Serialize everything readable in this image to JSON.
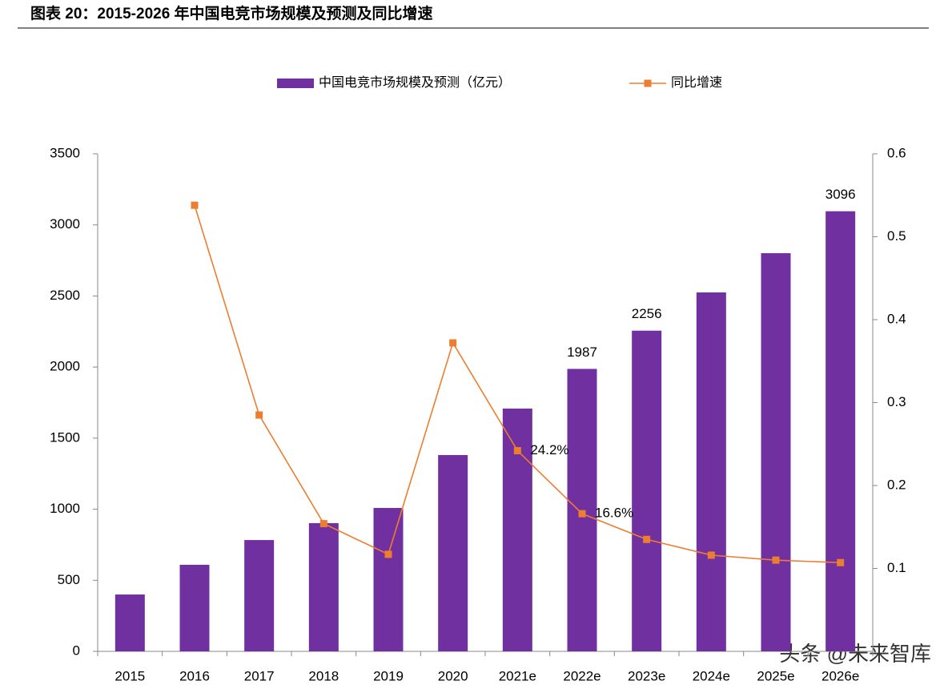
{
  "chart_data": {
    "type": "bar-line",
    "title": "图表 20：2015-2026 年中国电竞市场规模及预测及同比增速",
    "watermark": "头条 @未来智库",
    "categories": [
      "2015",
      "2016",
      "2017",
      "2018",
      "2019",
      "2020",
      "2021e",
      "2022e",
      "2023e",
      "2024e",
      "2025e",
      "2026e"
    ],
    "series": [
      {
        "name": "中国电竞市场规模及预测（亿元）",
        "type": "bar",
        "color": "#7030a0",
        "values": [
          400,
          609,
          783,
          902,
          1009,
          1381,
          1708,
          1987,
          2256,
          2525,
          2801,
          3096
        ],
        "value_labels": [
          null,
          null,
          null,
          null,
          null,
          null,
          null,
          "1987",
          "2256",
          null,
          null,
          "3096"
        ]
      },
      {
        "name": "同比增速",
        "type": "line",
        "axis": "y2",
        "color": "#ed7d31",
        "values": [
          null,
          0.538,
          0.285,
          0.154,
          0.117,
          0.372,
          0.242,
          0.166,
          0.135,
          0.116,
          0.11,
          0.107
        ],
        "value_labels": [
          null,
          null,
          null,
          null,
          null,
          null,
          "24.2%",
          "16.6%",
          null,
          null,
          null,
          null
        ]
      }
    ],
    "ylim": [
      0,
      3500
    ],
    "yticks": [
      0,
      500,
      1000,
      1500,
      2000,
      2500,
      3000,
      3500
    ],
    "y2lim": [
      0,
      0.6
    ],
    "y2ticks": [
      0.1,
      0.2,
      0.3,
      0.4,
      0.5,
      0.6
    ],
    "legend": "top"
  }
}
